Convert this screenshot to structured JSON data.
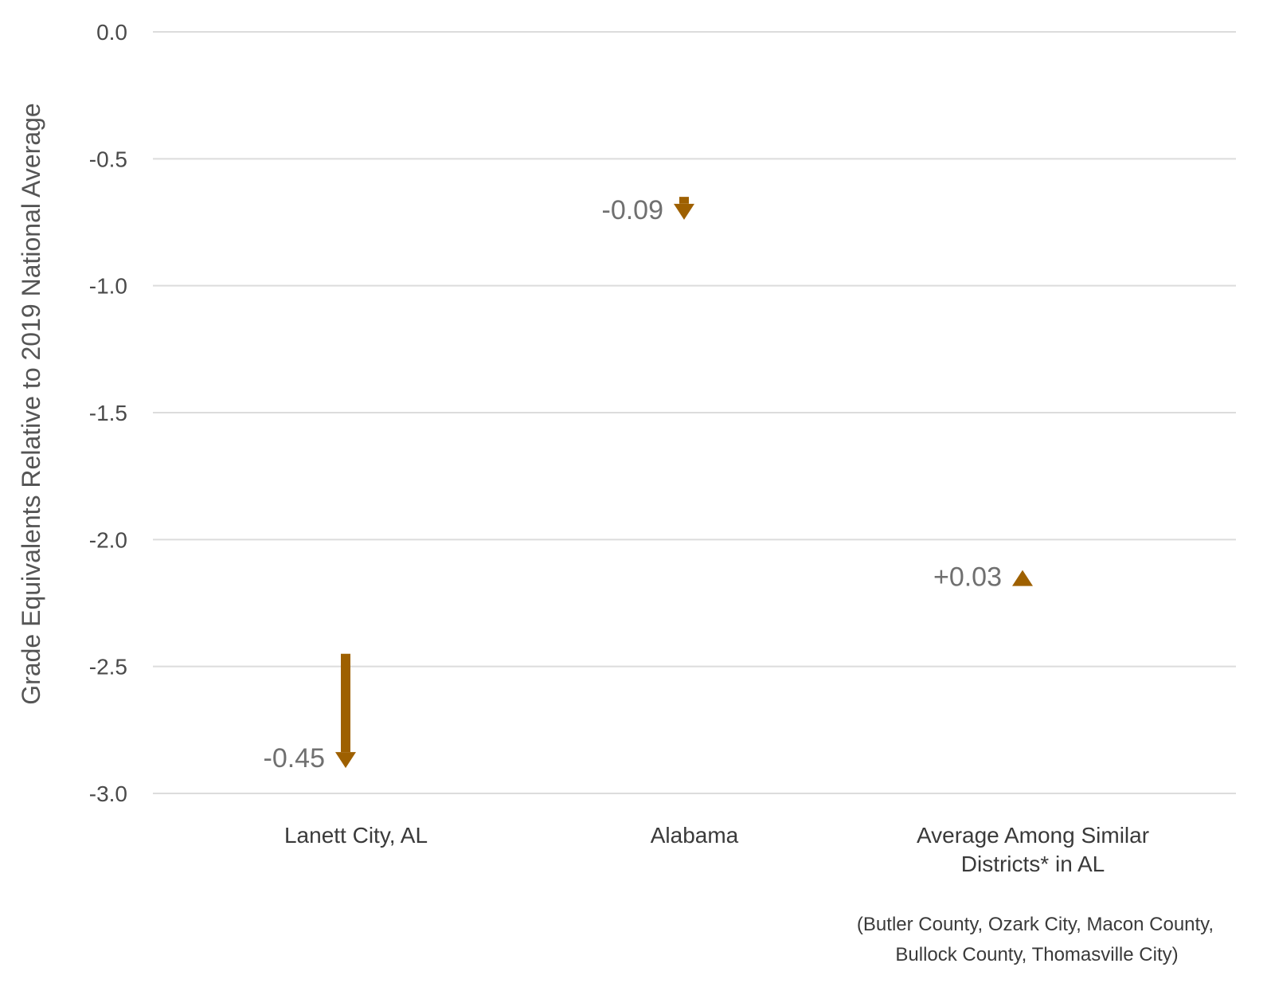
{
  "chart_data": {
    "type": "arrow",
    "ylabel": "Grade Equivalents Relative to 2019 National Average",
    "ylim": [
      -3.0,
      0.0
    ],
    "yticks": [
      0.0,
      -0.5,
      -1.0,
      -1.5,
      -2.0,
      -2.5,
      -3.0
    ],
    "ytick_labels": [
      "0.0",
      "-0.5",
      "-1.0",
      "-1.5",
      "-2.0",
      "-2.5",
      "-3.0"
    ],
    "grid": true,
    "categories": [
      [
        "Lanett City, AL"
      ],
      [
        "Alabama"
      ],
      [
        "Average Among Similar",
        "Districts* in AL"
      ]
    ],
    "start_values": [
      -2.45,
      -0.65,
      -2.15
    ],
    "end_values": [
      -2.9,
      -0.74,
      -2.12
    ],
    "change_labels": [
      "-0.45",
      "-0.09",
      "+0.03"
    ],
    "footnote": [
      "(Butler County, Ozark City, Macon County,",
      "Bullock County, Thomasville City)"
    ],
    "colors": {
      "arrow": "#9e6000",
      "grid": "#dcdcdc"
    }
  }
}
